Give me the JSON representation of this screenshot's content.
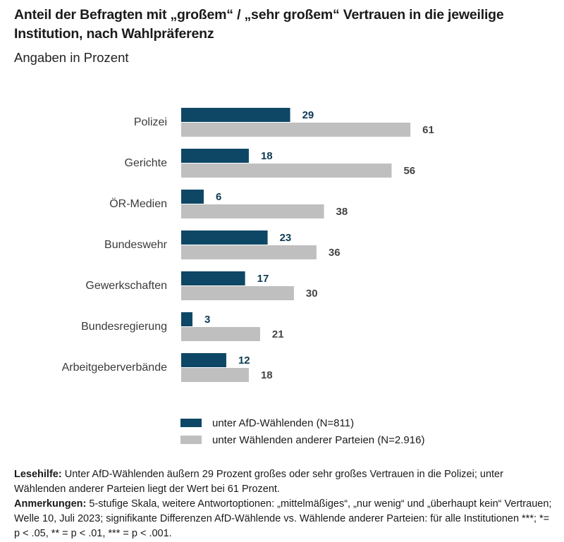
{
  "header": {
    "title": "Anteil der Befragten mit „großem“ / „sehr großem“ Vertrauen in die jeweilige Institution, nach Wahlpräferenz",
    "subtitle": "Angaben in Prozent"
  },
  "colors": {
    "afd": "#0e4765",
    "others": "#bfbfbf",
    "label_afd": "#0e3a55",
    "label_others": "#444444"
  },
  "chart_data": {
    "type": "bar",
    "orientation": "horizontal",
    "categories": [
      "Polizei",
      "Gerichte",
      "ÖR-Medien",
      "Bundeswehr",
      "Gewerkschaften",
      "Bundesregierung",
      "Arbeitgeberverbände"
    ],
    "series": [
      {
        "name": "unter AfD-Wählenden (N=811)",
        "values": [
          29,
          18,
          6,
          23,
          17,
          3,
          12
        ]
      },
      {
        "name": "unter Wählenden anderer Parteien (N=2.916)",
        "values": [
          61,
          56,
          38,
          36,
          30,
          21,
          18
        ]
      }
    ],
    "xlim": [
      0,
      100
    ],
    "grid": false,
    "legend_position": "bottom"
  },
  "legend": {
    "afd_label": "unter AfD-Wählenden (N=811)",
    "others_label": "unter Wählenden anderer Parteien (N=2.916)"
  },
  "notes": {
    "lesehilfe_label": "Lesehilfe:",
    "lesehilfe_text": " Unter AfD-Wählenden äußern 29 Prozent großes oder sehr großes Vertrauen in die Polizei; unter Wählenden anderer Parteien liegt der Wert bei 61 Prozent.",
    "anmerkungen_label": "Anmerkungen:",
    "anmerkungen_text": " 5-stufige Skala, weitere Antwortoptionen: „mittelmäßiges“, „nur wenig“ und „überhaupt kein“ Vertrauen; Welle 10, Juli 2023; signifikante Differenzen AfD-Wählende vs. Wählende anderer Parteien: für alle Institutionen ***; *= p < .05, ** = p < .01, *** = p < .001."
  }
}
